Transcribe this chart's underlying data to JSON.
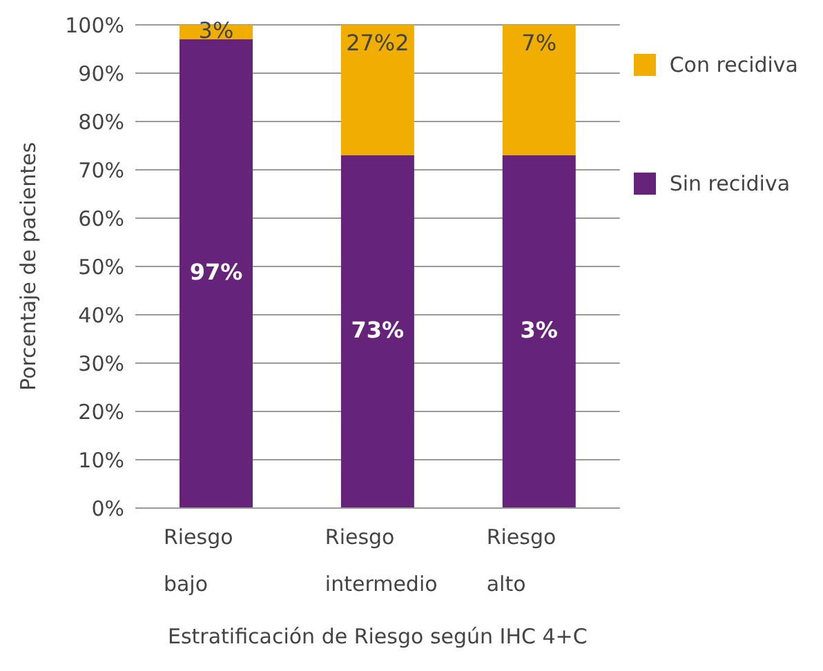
{
  "chart_data": {
    "type": "bar",
    "stacked": true,
    "xlabel": "Estratificación de Riesgo según IHC 4+C",
    "ylabel": "Porcentaje de pacientes",
    "categories": [
      "Riesgo bajo",
      "Riesgo intermedio",
      "Riesgo alto"
    ],
    "series": [
      {
        "name": "Sin recidiva",
        "color": "#652479",
        "values": [
          97,
          73,
          73
        ],
        "value_labels": [
          "97%",
          "73%",
          null
        ]
      },
      {
        "name": "Con recidiva",
        "color": "#efae00",
        "values": [
          3,
          27,
          27
        ],
        "value_labels": [
          "3%",
          "27%2",
          null
        ]
      }
    ],
    "annotations": [
      "3%",
      "7%"
    ],
    "ylim": [
      0,
      100
    ],
    "yticks": [
      {
        "value": 0,
        "label": "0%"
      },
      {
        "value": 10,
        "label": "10%"
      },
      {
        "value": 20,
        "label": "20%"
      },
      {
        "value": 30,
        "label": "30%"
      },
      {
        "value": 40,
        "label": "40%"
      },
      {
        "value": 50,
        "label": "50%"
      },
      {
        "value": 60,
        "label": "60%"
      },
      {
        "value": 70,
        "label": "70%"
      },
      {
        "value": 80,
        "label": "80%"
      },
      {
        "value": 90,
        "label": "90%"
      },
      {
        "value": 100,
        "label": "100%"
      }
    ],
    "grid": "y",
    "legend": "right"
  }
}
